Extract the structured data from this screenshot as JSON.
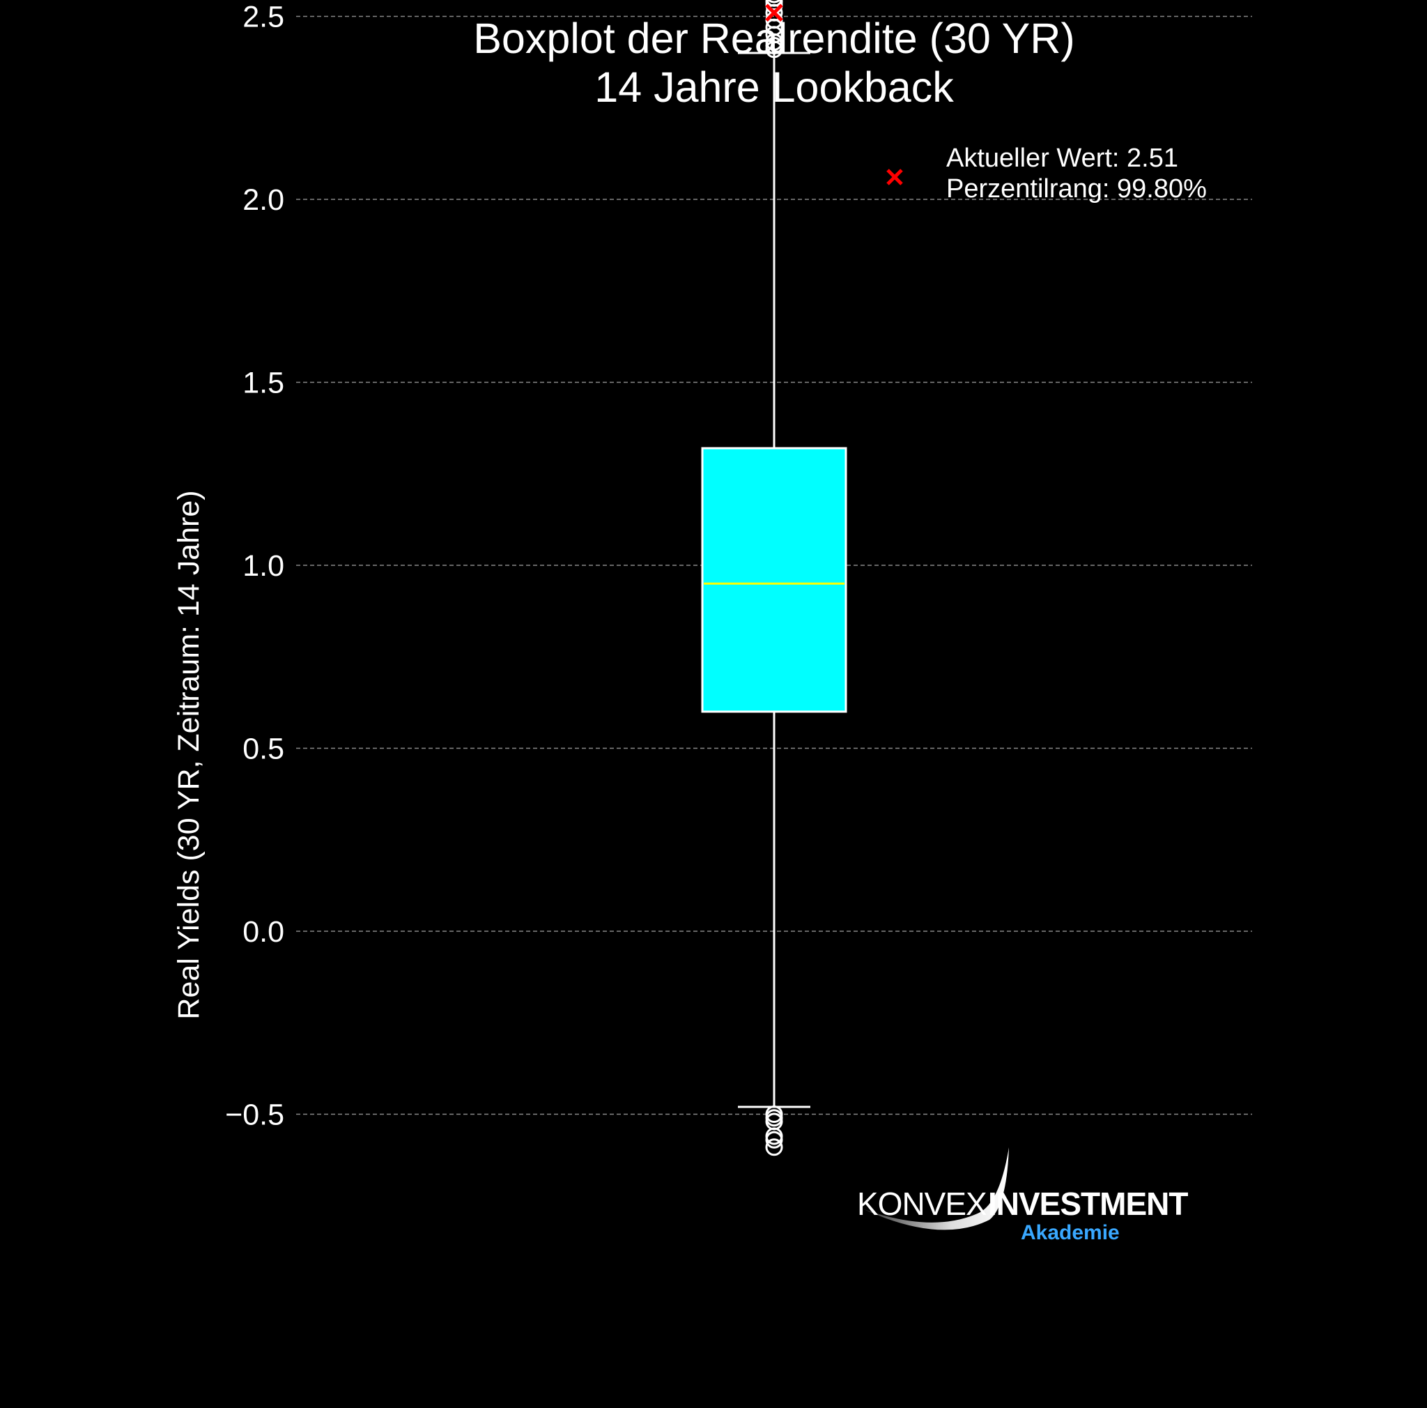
{
  "chart_data": {
    "type": "boxplot",
    "title": "Boxplot der Realrendite (30 YR)",
    "subtitle": "14 Jahre Lookback",
    "xlabel": "",
    "ylabel": "Real Yields (30 YR, Zeitraum: 14 Jahre)",
    "ylim": [
      -0.62,
      2.62
    ],
    "yticks": [
      -0.5,
      0.0,
      0.5,
      1.0,
      1.5,
      2.0,
      2.5
    ],
    "ytick_labels": [
      "−0.5",
      "0.0",
      "0.5",
      "1.0",
      "1.5",
      "2.0",
      "2.5"
    ],
    "grid": "horizontal dashed",
    "box": {
      "q1": 0.6,
      "median": 0.95,
      "q3": 1.32,
      "whisker_low": -0.48,
      "whisker_high": 2.4,
      "fill_color": "#00ffff",
      "median_color": "#ffff00",
      "edge_color": "#ffffff"
    },
    "outliers_high": [
      2.41,
      2.42,
      2.43,
      2.45,
      2.47,
      2.49,
      2.51,
      2.53,
      2.54,
      2.55,
      2.56,
      2.57
    ],
    "outliers_low": [
      -0.5,
      -0.51,
      -0.52,
      -0.56,
      -0.57,
      -0.59
    ],
    "current_value": 2.51,
    "current_marker_color": "#ff0000",
    "legend": {
      "placement": "top-right",
      "line1": "Aktueller Wert: 2.51",
      "line2": "Perzentilrang: 99.80%"
    }
  },
  "logo": {
    "word1": "KONVEX",
    "word2": "INVESTMENT",
    "sub": "Akademie"
  },
  "colors": {
    "background": "#000000",
    "grid": "#888888",
    "text": "#ffffff",
    "logo_accent": "#39a8ff"
  }
}
